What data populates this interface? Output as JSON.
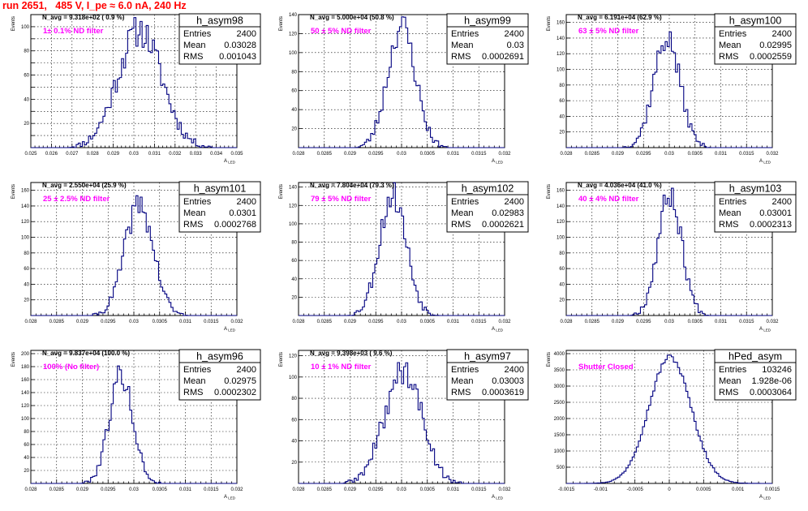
{
  "page": {
    "title": "run 2651,   485 V, I_pe ≈ 6.0 nA, 240 Hz"
  },
  "colors": {
    "histogram": "#000080",
    "filter_text": "#ff00ff",
    "run_title": "#ff0000"
  },
  "stat_keys": [
    "Entries",
    "Mean",
    "RMS"
  ],
  "chart_data": [
    {
      "type": "histogram",
      "name": "h_asym98",
      "navg": "N_avg = 9.318e+02 ( 0.9 %)",
      "filter": "1± 0.1% ND filter",
      "stats": {
        "Entries": "2400",
        "Mean": "0.03028",
        "RMS": "0.001043"
      },
      "ylabel": "Events",
      "xlabel": "A",
      "xlabel_sub": "LED",
      "xlim": [
        0.025,
        0.035
      ],
      "ylim": [
        0,
        110
      ],
      "xticks": [
        0.025,
        0.026,
        0.027,
        0.028,
        0.029,
        0.03,
        0.031,
        0.032,
        0.033,
        0.034,
        0.035
      ],
      "xticklabels": [
        "0.025",
        "0.026",
        "0.027",
        "0.028",
        "0.029",
        "0.03",
        "0.031",
        "0.032",
        "0.033",
        "0.034",
        "0.035"
      ],
      "yticks": [
        0,
        10,
        20,
        30,
        40,
        50,
        60,
        70,
        80,
        90,
        100
      ],
      "yticklabels": [
        "",
        "",
        "20",
        "",
        "40",
        "",
        "60",
        "",
        "80",
        "",
        "100"
      ],
      "curve": {
        "center": 0.03028,
        "sigma": 0.00107,
        "peak": 97
      },
      "seed": 11
    },
    {
      "type": "histogram",
      "name": "h_asym99",
      "navg": "N_avg = 5.000e+04 (50.8 %)",
      "filter": "50 ± 5% ND filter",
      "stats": {
        "Entries": "2400",
        "Mean": "0.03",
        "RMS": "0.0002691"
      },
      "ylabel": "Events",
      "xlabel": "A",
      "xlabel_sub": "LED",
      "xlim": [
        0.028,
        0.032
      ],
      "ylim": [
        0,
        140
      ],
      "xticks": [
        0.028,
        0.0285,
        0.029,
        0.0295,
        0.03,
        0.0305,
        0.031,
        0.0315,
        0.032
      ],
      "xticklabels": [
        "0.028",
        "0.0285",
        "0.029",
        "0.0295",
        "0.03",
        "0.0305",
        "0.031",
        "0.0315",
        "0.032"
      ],
      "yticks": [
        0,
        20,
        40,
        60,
        80,
        100,
        120,
        140
      ],
      "yticklabels": [
        "",
        "20",
        "40",
        "60",
        "80",
        "100",
        "120",
        "140"
      ],
      "curve": {
        "center": 0.03,
        "sigma": 0.00027,
        "peak": 128
      },
      "seed": 23
    },
    {
      "type": "histogram",
      "name": "h_asym100",
      "navg": "N_avg = 6.191e+04 (62.9 %)",
      "filter": "63 ± 5% ND filter",
      "stats": {
        "Entries": "2400",
        "Mean": "0.02995",
        "RMS": "0.0002559"
      },
      "ylabel": "Events",
      "xlabel": "A",
      "xlabel_sub": "LED",
      "xlim": [
        0.028,
        0.032
      ],
      "ylim": [
        0,
        170
      ],
      "xticks": [
        0.028,
        0.0285,
        0.029,
        0.0295,
        0.03,
        0.0305,
        0.031,
        0.0315,
        0.032
      ],
      "xticklabels": [
        "0.028",
        "0.0285",
        "0.029",
        "0.0295",
        "0.03",
        "0.0305",
        "0.031",
        "0.0315",
        "0.032"
      ],
      "yticks": [
        0,
        20,
        40,
        60,
        80,
        100,
        120,
        140,
        160
      ],
      "yticklabels": [
        "",
        "20",
        "40",
        "60",
        "80",
        "100",
        "120",
        "140",
        "160"
      ],
      "curve": {
        "center": 0.02995,
        "sigma": 0.000256,
        "peak": 140
      },
      "seed": 37
    },
    {
      "type": "histogram",
      "name": "h_asym101",
      "navg": "N_avg = 2.550e+04 (25.9 %)",
      "filter": "25 ± 2.5% ND filter",
      "stats": {
        "Entries": "2400",
        "Mean": "0.0301",
        "RMS": "0.0002768"
      },
      "ylabel": "Events",
      "xlabel": "A",
      "xlabel_sub": "LED",
      "xlim": [
        0.028,
        0.032
      ],
      "ylim": [
        0,
        170
      ],
      "xticks": [
        0.028,
        0.0285,
        0.029,
        0.0295,
        0.03,
        0.0305,
        0.031,
        0.0315,
        0.032
      ],
      "xticklabels": [
        "0.028",
        "0.0285",
        "0.029",
        "0.0295",
        "0.03",
        "0.0305",
        "0.031",
        "0.0315",
        "0.032"
      ],
      "yticks": [
        0,
        20,
        40,
        60,
        80,
        100,
        120,
        140,
        160
      ],
      "yticklabels": [
        "",
        "20",
        "40",
        "60",
        "80",
        "100",
        "120",
        "140",
        "160"
      ],
      "curve": {
        "center": 0.0301,
        "sigma": 0.000277,
        "peak": 142
      },
      "seed": 41
    },
    {
      "type": "histogram",
      "name": "h_asym102",
      "navg": "N_avg = 7.804e+04 (79.3 %)",
      "filter": "79 ± 5% ND filter",
      "stats": {
        "Entries": "2400",
        "Mean": "0.02983",
        "RMS": "0.0002621"
      },
      "ylabel": "Events",
      "xlabel": "A",
      "xlabel_sub": "LED",
      "xlim": [
        0.028,
        0.032
      ],
      "ylim": [
        0,
        145
      ],
      "xticks": [
        0.028,
        0.0285,
        0.029,
        0.0295,
        0.03,
        0.0305,
        0.031,
        0.0315,
        0.032
      ],
      "xticklabels": [
        "0.028",
        "0.0285",
        "0.029",
        "0.0295",
        "0.03",
        "0.0305",
        "0.031",
        "0.0315",
        "0.032"
      ],
      "yticks": [
        0,
        20,
        40,
        60,
        80,
        100,
        120,
        140
      ],
      "yticklabels": [
        "",
        "20",
        "40",
        "60",
        "80",
        "100",
        "120",
        "140"
      ],
      "curve": {
        "center": 0.02983,
        "sigma": 0.000262,
        "peak": 132
      },
      "seed": 53
    },
    {
      "type": "histogram",
      "name": "h_asym103",
      "navg": "N_avg = 4.036e+04 (41.0 %)",
      "filter": "40 ± 4% ND filter",
      "stats": {
        "Entries": "2400",
        "Mean": "0.03001",
        "RMS": "0.0002313"
      },
      "ylabel": "Events",
      "xlabel": "A",
      "xlabel_sub": "LED",
      "xlim": [
        0.028,
        0.032
      ],
      "ylim": [
        0,
        170
      ],
      "xticks": [
        0.028,
        0.0285,
        0.029,
        0.0295,
        0.03,
        0.0305,
        0.031,
        0.0315,
        0.032
      ],
      "xticklabels": [
        "0.028",
        "0.0285",
        "0.029",
        "0.0295",
        "0.03",
        "0.0305",
        "0.031",
        "0.0315",
        "0.032"
      ],
      "yticks": [
        0,
        20,
        40,
        60,
        80,
        100,
        120,
        140,
        160
      ],
      "yticklabels": [
        "",
        "20",
        "40",
        "60",
        "80",
        "100",
        "120",
        "140",
        "160"
      ],
      "curve": {
        "center": 0.03001,
        "sigma": 0.000231,
        "peak": 155
      },
      "seed": 67
    },
    {
      "type": "histogram",
      "name": "h_asym96",
      "navg": "N_avg = 9.837e+04 (100.0 %)",
      "filter": "100% (No filter)",
      "stats": {
        "Entries": "2400",
        "Mean": "0.02975",
        "RMS": "0.0002302"
      },
      "ylabel": "Events",
      "xlabel": "A",
      "xlabel_sub": "LED",
      "xlim": [
        0.028,
        0.032
      ],
      "ylim": [
        0,
        205
      ],
      "xticks": [
        0.028,
        0.0285,
        0.029,
        0.0295,
        0.03,
        0.0305,
        0.031,
        0.0315,
        0.032
      ],
      "xticklabels": [
        "0.028",
        "0.0285",
        "0.029",
        "0.0295",
        "0.03",
        "0.0305",
        "0.031",
        "0.0315",
        "0.032"
      ],
      "yticks": [
        0,
        20,
        40,
        60,
        80,
        100,
        120,
        140,
        160,
        180,
        200
      ],
      "yticklabels": [
        "",
        "20",
        "40",
        "60",
        "80",
        "100",
        "120",
        "140",
        "160",
        "180",
        "200"
      ],
      "curve": {
        "center": 0.02975,
        "sigma": 0.00023,
        "peak": 168
      },
      "seed": 79
    },
    {
      "type": "histogram",
      "name": "h_asym97",
      "navg": "N_avg = 9.398e+03 ( 9.6 %)",
      "filter": "10 ± 1% ND filter",
      "stats": {
        "Entries": "2400",
        "Mean": "0.03003",
        "RMS": "0.0003619"
      },
      "ylabel": "Events",
      "xlabel": "A",
      "xlabel_sub": "LED",
      "xlim": [
        0.028,
        0.032
      ],
      "ylim": [
        0,
        125
      ],
      "xticks": [
        0.028,
        0.0285,
        0.029,
        0.0295,
        0.03,
        0.0305,
        0.031,
        0.0315,
        0.032
      ],
      "xticklabels": [
        "0.028",
        "0.0285",
        "0.029",
        "0.0295",
        "0.03",
        "0.0305",
        "0.031",
        "0.0315",
        "0.032"
      ],
      "yticks": [
        0,
        20,
        40,
        60,
        80,
        100,
        120
      ],
      "yticklabels": [
        "",
        "20",
        "40",
        "60",
        "80",
        "100",
        "120"
      ],
      "curve": {
        "center": 0.03003,
        "sigma": 0.00036,
        "peak": 106
      },
      "seed": 89
    },
    {
      "type": "histogram",
      "name": "hPed_asym",
      "navg": "",
      "filter": "Shutter Closed",
      "stats": {
        "Entries": "103246",
        "Mean": "1.928e-06",
        "RMS": "0.0003064"
      },
      "ylabel": "Events",
      "xlabel": "A",
      "xlabel_sub": "LED",
      "xlim": [
        -0.0015,
        0.0015
      ],
      "ylim": [
        0,
        4100
      ],
      "xticks": [
        -0.0015,
        -0.001,
        -0.0005,
        0,
        0.0005,
        0.001,
        0.0015
      ],
      "xticklabels": [
        "-0.0015",
        "-0.001",
        "-0.0005",
        "0",
        "0.0005",
        "0.001",
        "0.0015"
      ],
      "yticks": [
        0,
        500,
        1000,
        1500,
        2000,
        2500,
        3000,
        3500,
        4000
      ],
      "yticklabels": [
        "",
        "500",
        "1000",
        "1500",
        "2000",
        "2500",
        "3000",
        "3500",
        "4000"
      ],
      "curve": {
        "center": 1e-05,
        "sigma": 0.000306,
        "peak": 3900
      },
      "seed": 97
    }
  ]
}
